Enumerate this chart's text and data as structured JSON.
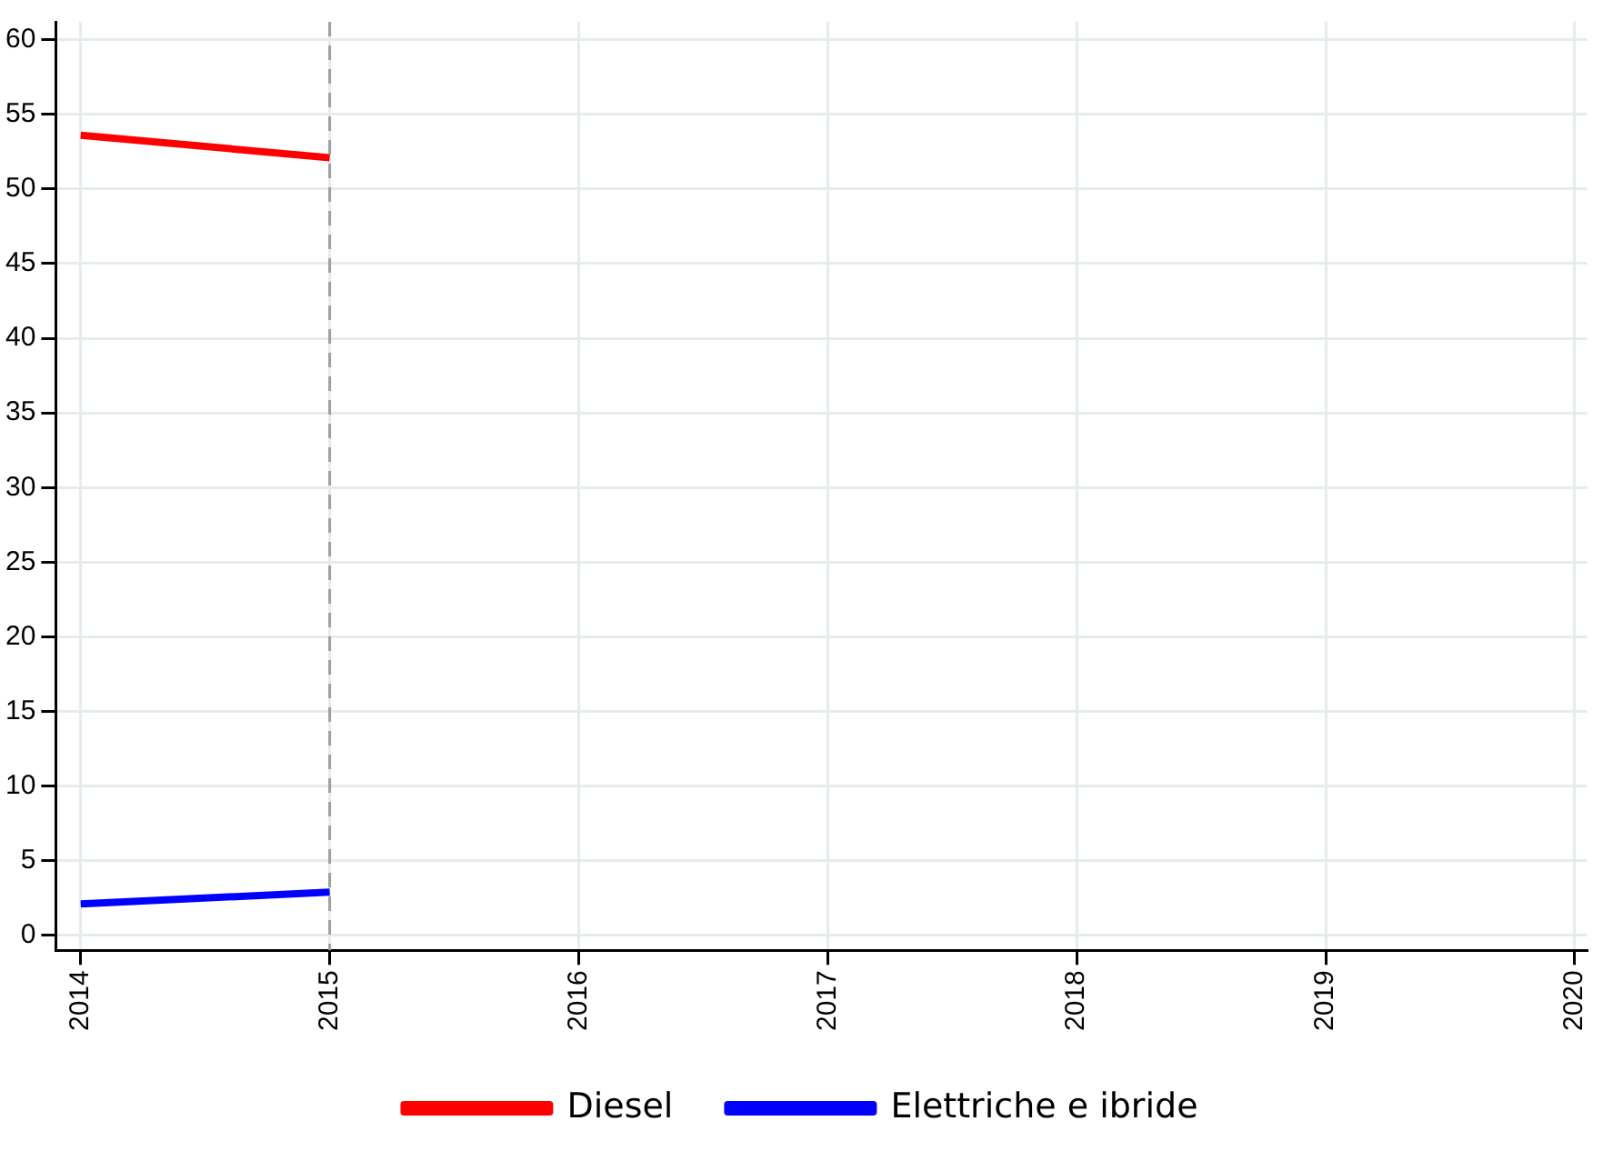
{
  "chart_data": {
    "type": "line",
    "x": [
      2014,
      2015
    ],
    "series": [
      {
        "name": "Diesel",
        "color": "#ff0000",
        "values": [
          53.6,
          52.1
        ]
      },
      {
        "name": "Elettriche e ibride",
        "color": "#0000ff",
        "values": [
          2.1,
          2.9
        ]
      }
    ],
    "xlim": [
      2013.9,
      2020.05
    ],
    "xticks": [
      2014,
      2015,
      2016,
      2017,
      2018,
      2019,
      2020
    ],
    "ylim": [
      -1,
      61.2
    ],
    "yticks": [
      0,
      5,
      10,
      15,
      20,
      25,
      30,
      35,
      40,
      45,
      50,
      55,
      60
    ],
    "ref_lines": [
      {
        "axis": "x",
        "value": 2015,
        "color": "#a0a0a0",
        "line_style": "dashed"
      }
    ],
    "grid": true,
    "legend": "bottom",
    "marker": "none",
    "line_style": "solid"
  }
}
